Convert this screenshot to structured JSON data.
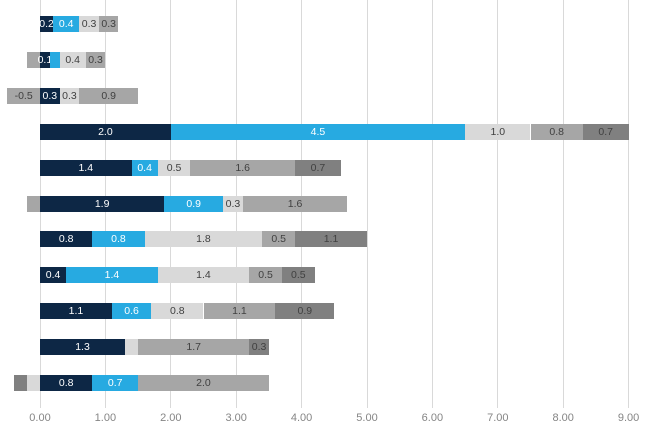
{
  "chart_data": {
    "type": "bar",
    "variant": "horizontal_stacked",
    "title": "",
    "legend": "none",
    "x_axis": {
      "min": 0,
      "max": 9,
      "tick_step": 1,
      "tick_labels": [
        "0.00",
        "1.00",
        "2.00",
        "3.00",
        "4.00",
        "5.00",
        "6.00",
        "7.00",
        "8.00",
        "9.00"
      ],
      "gridlines": true,
      "gridline_color": "#d9d9d9",
      "tick_label_color": "#858585"
    },
    "palette": {
      "navy": "#0d2745",
      "cyan": "#27aae1",
      "light_gray": "#d9d9d9",
      "medium_gray": "#a6a6a6",
      "dark_gray": "#808080"
    },
    "label_text_colors": {
      "on_blue": "#ffffff",
      "on_gray": "#404040"
    },
    "rows": [
      {
        "segments": [
          {
            "value": 0.2,
            "label": "0.2",
            "color": "navy"
          },
          {
            "value": 0.4,
            "label": "0.4",
            "color": "cyan"
          },
          {
            "value": 0.3,
            "label": "0.3",
            "color": "light_gray"
          },
          {
            "value": 0.3,
            "label": "0.3",
            "color": "medium_gray"
          }
        ]
      },
      {
        "segments": [
          {
            "value": -0.2,
            "label": "",
            "color": "medium_gray"
          },
          {
            "value": 0.15,
            "label": "0.1",
            "color": "navy"
          },
          {
            "value": 0.15,
            "label": "",
            "color": "cyan"
          },
          {
            "value": 0.4,
            "label": "0.4",
            "color": "light_gray"
          },
          {
            "value": 0.3,
            "label": "0.3",
            "color": "medium_gray"
          }
        ]
      },
      {
        "segments": [
          {
            "value": -0.5,
            "label": "-0.5",
            "color": "medium_gray"
          },
          {
            "value": 0.3,
            "label": "0.3",
            "color": "navy"
          },
          {
            "value": 0.3,
            "label": "0.3",
            "color": "light_gray"
          },
          {
            "value": 0.9,
            "label": "0.9",
            "color": "medium_gray"
          }
        ]
      },
      {
        "segments": [
          {
            "value": 2.0,
            "label": "2.0",
            "color": "navy"
          },
          {
            "value": 4.5,
            "label": "4.5",
            "color": "cyan"
          },
          {
            "value": 1.0,
            "label": "1.0",
            "color": "light_gray"
          },
          {
            "value": 0.8,
            "label": "0.8",
            "color": "medium_gray"
          },
          {
            "value": 0.7,
            "label": "0.7",
            "color": "dark_gray"
          }
        ]
      },
      {
        "segments": [
          {
            "value": 1.4,
            "label": "1.4",
            "color": "navy"
          },
          {
            "value": 0.4,
            "label": "0.4",
            "color": "cyan"
          },
          {
            "value": 0.5,
            "label": "0.5",
            "color": "light_gray"
          },
          {
            "value": 1.6,
            "label": "1.6",
            "color": "medium_gray"
          },
          {
            "value": 0.7,
            "label": "0.7",
            "color": "dark_gray"
          }
        ]
      },
      {
        "segments": [
          {
            "value": -0.2,
            "label": "",
            "color": "medium_gray"
          },
          {
            "value": 1.9,
            "label": "1.9",
            "color": "navy"
          },
          {
            "value": 0.9,
            "label": "0.9",
            "color": "cyan"
          },
          {
            "value": 0.3,
            "label": "0.3",
            "color": "light_gray"
          },
          {
            "value": 1.6,
            "label": "1.6",
            "color": "medium_gray"
          }
        ]
      },
      {
        "segments": [
          {
            "value": 0.8,
            "label": "0.8",
            "color": "navy"
          },
          {
            "value": 0.8,
            "label": "0.8",
            "color": "cyan"
          },
          {
            "value": 1.8,
            "label": "1.8",
            "color": "light_gray"
          },
          {
            "value": 0.5,
            "label": "0.5",
            "color": "medium_gray"
          },
          {
            "value": 1.1,
            "label": "1.1",
            "color": "dark_gray"
          }
        ]
      },
      {
        "segments": [
          {
            "value": 0.4,
            "label": "0.4",
            "color": "navy"
          },
          {
            "value": 1.4,
            "label": "1.4",
            "color": "cyan"
          },
          {
            "value": 1.4,
            "label": "1.4",
            "color": "light_gray"
          },
          {
            "value": 0.5,
            "label": "0.5",
            "color": "medium_gray"
          },
          {
            "value": 0.5,
            "label": "0.5",
            "color": "dark_gray"
          }
        ]
      },
      {
        "segments": [
          {
            "value": 1.1,
            "label": "1.1",
            "color": "navy"
          },
          {
            "value": 0.6,
            "label": "0.6",
            "color": "cyan"
          },
          {
            "value": 0.8,
            "label": "0.8",
            "color": "light_gray"
          },
          {
            "value": 1.1,
            "label": "1.1",
            "color": "medium_gray"
          },
          {
            "value": 0.9,
            "label": "0.9",
            "color": "dark_gray"
          }
        ]
      },
      {
        "segments": [
          {
            "value": 1.3,
            "label": "1.3",
            "color": "navy"
          },
          {
            "value": 0.2,
            "label": "",
            "color": "light_gray"
          },
          {
            "value": 1.7,
            "label": "1.7",
            "color": "medium_gray"
          },
          {
            "value": 0.3,
            "label": "0.3",
            "color": "dark_gray"
          }
        ]
      },
      {
        "segments": [
          {
            "value": -0.2,
            "label": "",
            "color": "dark_gray"
          },
          {
            "value": -0.2,
            "label": "",
            "color": "light_gray"
          },
          {
            "value": 0.8,
            "label": "0.8",
            "color": "navy"
          },
          {
            "value": 0.7,
            "label": "0.7",
            "color": "cyan"
          },
          {
            "value": 2.0,
            "label": "2.0",
            "color": "medium_gray"
          }
        ]
      }
    ]
  }
}
